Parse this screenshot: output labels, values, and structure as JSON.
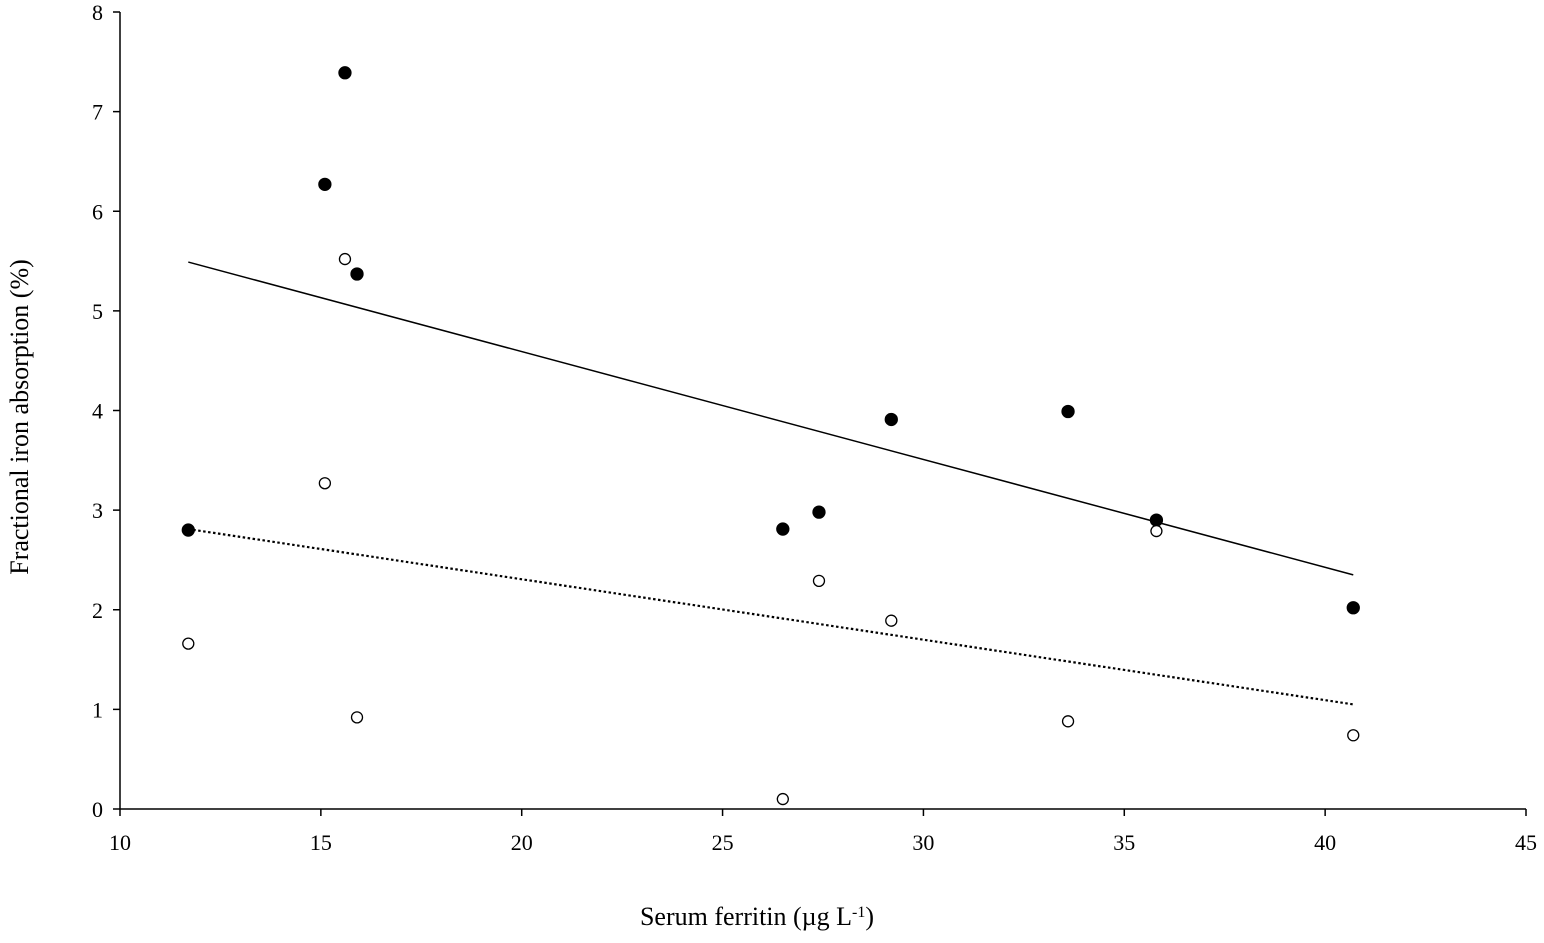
{
  "chart_data": {
    "type": "scatter",
    "title": "",
    "xlabel": "Serum ferritin (µg L",
    "xlabel_superscript": "-1",
    "xlabel_suffix": ")",
    "ylabel": "Fractional iron absorption (%)",
    "xlim": [
      10,
      45
    ],
    "ylim": [
      0,
      8
    ],
    "x_ticks": [
      "10",
      "15",
      "20",
      "25",
      "30",
      "35",
      "40",
      "45"
    ],
    "y_ticks": [
      "0",
      "1",
      "2",
      "3",
      "4",
      "5",
      "6",
      "7",
      "8"
    ],
    "grid": false,
    "legend": "none",
    "series": [
      {
        "marker": "filled-circle",
        "color": "#000000",
        "points": [
          {
            "x": 11.7,
            "y": 2.8
          },
          {
            "x": 15.1,
            "y": 6.27
          },
          {
            "x": 15.6,
            "y": 7.39
          },
          {
            "x": 15.9,
            "y": 5.37
          },
          {
            "x": 26.5,
            "y": 2.81
          },
          {
            "x": 27.4,
            "y": 2.98
          },
          {
            "x": 29.2,
            "y": 3.91
          },
          {
            "x": 33.6,
            "y": 3.99
          },
          {
            "x": 35.8,
            "y": 2.9
          },
          {
            "x": 40.7,
            "y": 2.02
          }
        ],
        "trendline": {
          "style": "solid",
          "x": [
            11.7,
            40.7
          ],
          "y": [
            5.49,
            2.35
          ]
        }
      },
      {
        "marker": "open-circle",
        "color": "#000000",
        "points": [
          {
            "x": 11.7,
            "y": 1.66
          },
          {
            "x": 15.1,
            "y": 3.27
          },
          {
            "x": 15.6,
            "y": 5.52
          },
          {
            "x": 15.9,
            "y": 0.92
          },
          {
            "x": 26.5,
            "y": 0.1
          },
          {
            "x": 27.4,
            "y": 2.29
          },
          {
            "x": 29.2,
            "y": 1.89
          },
          {
            "x": 33.6,
            "y": 0.88
          },
          {
            "x": 35.8,
            "y": 2.79
          },
          {
            "x": 40.7,
            "y": 0.74
          }
        ],
        "trendline": {
          "style": "dotted",
          "x": [
            11.7,
            40.7
          ],
          "y": [
            2.81,
            1.05
          ]
        }
      }
    ]
  }
}
